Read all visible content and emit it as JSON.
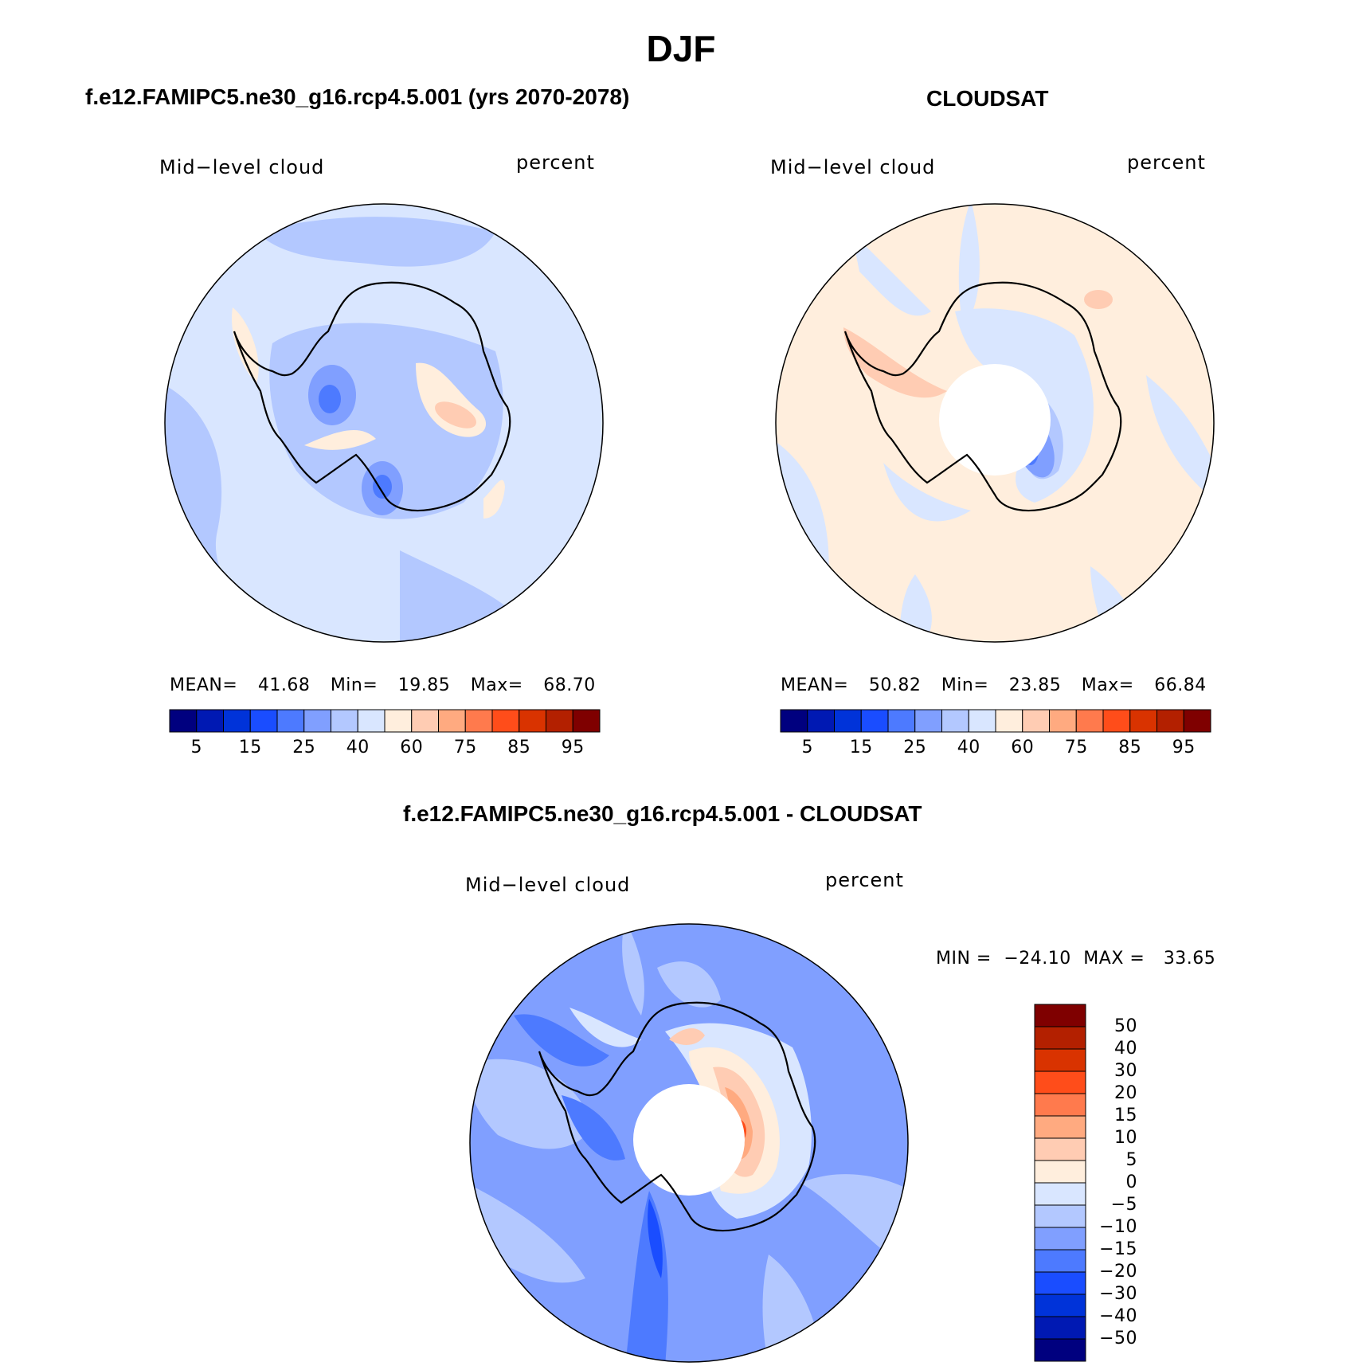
{
  "page": {
    "title": "DJF"
  },
  "colors": {
    "abs_levels": [
      "#00007f",
      "#0019b3",
      "#0033d9",
      "#1a4dff",
      "#4d7aff",
      "#809fff",
      "#b3c8ff",
      "#d9e6ff",
      "#ffeedd",
      "#ffccb3",
      "#ffaa80",
      "#ff7a4d",
      "#ff4d1a",
      "#d93300",
      "#b32000",
      "#7f0000"
    ],
    "diff_levels": [
      "#00007f",
      "#0019b3",
      "#0033d9",
      "#1a4dff",
      "#4d7aff",
      "#809fff",
      "#b3c8ff",
      "#d9e6ff",
      "#ffeedd",
      "#ffccb3",
      "#ffaa80",
      "#ff7a4d",
      "#ff4d1a",
      "#d93300",
      "#b32000",
      "#7f0000"
    ],
    "coast": "#000000"
  },
  "chart_data": [
    {
      "type": "heatmap",
      "id": "model",
      "title": "f.e12.FAMIPC5.ne30_g16.rcp4.5.001 (yrs 2070-2078)",
      "variable": "Mid−level cloud",
      "units": "percent",
      "projection": "south-polar-stereographic",
      "stats": {
        "mean_label": "MEAN=",
        "mean": "41.68",
        "min_label": "Min=",
        "min": "19.85",
        "max_label": "Max=",
        "max": "68.70"
      },
      "colorbar": {
        "orientation": "horizontal",
        "tick_labels": [
          "5",
          "15",
          "25",
          "40",
          "60",
          "75",
          "85",
          "95"
        ]
      },
      "dominant_range": [
        40,
        60
      ]
    },
    {
      "type": "heatmap",
      "id": "obs",
      "title": "CLOUDSAT",
      "variable": "Mid−level cloud",
      "units": "percent",
      "projection": "south-polar-stereographic",
      "stats": {
        "mean_label": "MEAN=",
        "mean": "50.82",
        "min_label": "Min=",
        "min": "23.85",
        "max_label": "Max=",
        "max": "66.84"
      },
      "colorbar": {
        "orientation": "horizontal",
        "tick_labels": [
          "5",
          "15",
          "25",
          "40",
          "60",
          "75",
          "85",
          "95"
        ]
      },
      "missing_polar_cap": true
    },
    {
      "type": "heatmap",
      "id": "diff",
      "title": "f.e12.FAMIPC5.ne30_g16.rcp4.5.001 - CLOUDSAT",
      "variable": "Mid−level cloud",
      "units": "percent",
      "projection": "south-polar-stereographic",
      "stats": {
        "min_label": "MIN =",
        "min": "−24.10",
        "max_label": "MAX =",
        "max": "33.65"
      },
      "colorbar": {
        "orientation": "vertical",
        "tick_labels": [
          "50",
          "40",
          "30",
          "20",
          "15",
          "10",
          "5",
          "0",
          "−5",
          "−10",
          "−15",
          "−20",
          "−30",
          "−40",
          "−50"
        ]
      },
      "missing_polar_cap": true
    }
  ]
}
